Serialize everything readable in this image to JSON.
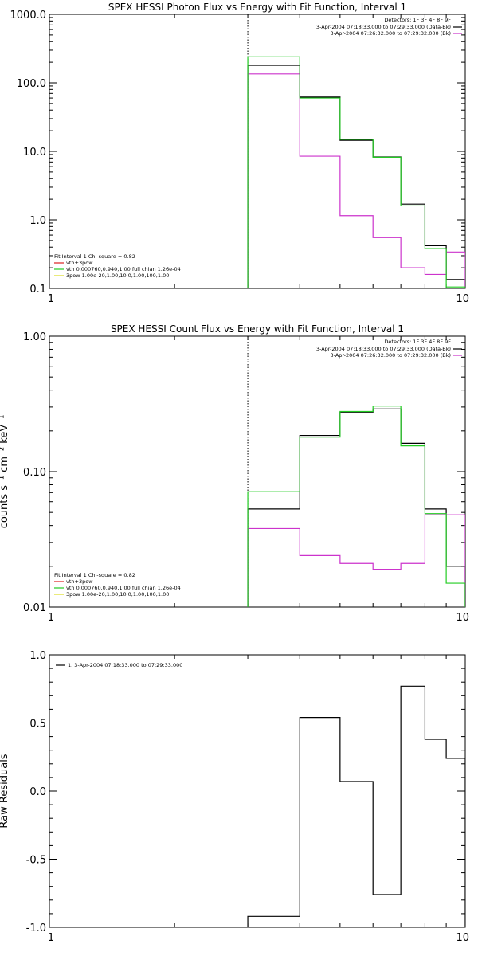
{
  "chart_data": [
    {
      "type": "line",
      "title": "SPEX HESSI Photon Flux vs Energy with Fit Function, Interval 1",
      "ylabel": "",
      "x_scale": "log",
      "y_scale": "log",
      "xlim": [
        1,
        10
      ],
      "ylim": [
        0.1,
        1000
      ],
      "x_ticks": [
        {
          "value": 1,
          "label": "1"
        },
        {
          "value": 10,
          "label": "10"
        }
      ],
      "y_ticks": [
        {
          "value": 0.1,
          "label": "0.1"
        },
        {
          "value": 1,
          "label": "1.0"
        },
        {
          "value": 10,
          "label": "10.0"
        },
        {
          "value": 100,
          "label": "100.0"
        },
        {
          "value": 1000,
          "label": "1000.0"
        }
      ],
      "vline_x": 3.0,
      "legend_top": {
        "detectors": "Detectors: 1F 3F 4F 8F 9F",
        "entries": [
          {
            "label": "3-Apr-2004 07:18:33.000 to 07:29:33.000 (Data-Bk)",
            "color": "#000000"
          },
          {
            "label": "3-Apr-2004 07:26:32.000 to 07:29:32.000 (Bk)",
            "color": "#cc33cc"
          }
        ]
      },
      "legend_bottom": {
        "header": "Fit Interval  1    Chi-square = 0.82",
        "entries": [
          {
            "label": "vth+3pow",
            "color": "#dd2222"
          },
          {
            "label": "vth 0.000760,0.940,1.00  full chian 1.26e-04",
            "color": "#22cc22"
          },
          {
            "label": "3pow 1.00e-20,1.00,10.0,1.00,100,1.00",
            "color": "#dddd22"
          }
        ]
      },
      "edges": [
        3.0,
        3.5,
        4.0,
        4.5,
        5.0,
        5.5,
        6.0,
        6.5,
        7.0,
        7.5,
        8.0,
        9.0,
        10.0
      ],
      "series": [
        {
          "color": "#000000",
          "values": [
            180,
            180,
            62,
            62,
            14.5,
            14.5,
            8.3,
            8.3,
            1.7,
            1.7,
            0.42,
            0.135
          ]
        },
        {
          "color": "#cc33cc",
          "values": [
            135,
            135,
            8.5,
            8.5,
            1.15,
            1.15,
            0.55,
            0.55,
            0.2,
            0.2,
            0.16,
            0.34
          ]
        },
        {
          "color": "#22cc22",
          "values": [
            240,
            240,
            60,
            60,
            15,
            15,
            8.2,
            8.2,
            1.6,
            1.6,
            0.38,
            0.105
          ]
        }
      ]
    },
    {
      "type": "line",
      "title": "SPEX HESSI Count Flux vs Energy with Fit Function, Interval 1",
      "ylabel": "counts s⁻¹ cm⁻² keV⁻¹",
      "x_scale": "log",
      "y_scale": "log",
      "xlim": [
        1,
        10
      ],
      "ylim": [
        0.01,
        1
      ],
      "x_ticks": [
        {
          "value": 1,
          "label": "1"
        },
        {
          "value": 10,
          "label": "10"
        }
      ],
      "y_ticks": [
        {
          "value": 0.01,
          "label": "0.01"
        },
        {
          "value": 0.1,
          "label": "0.10"
        },
        {
          "value": 1,
          "label": "1.00"
        }
      ],
      "vline_x": 3.0,
      "legend_top": {
        "detectors": "Detectors: 1F 3F 4F 8F 9F",
        "entries": [
          {
            "label": "3-Apr-2004 07:18:33.000 to 07:29:33.000 (Data-Bk)",
            "color": "#000000"
          },
          {
            "label": "3-Apr-2004 07:26:32.000 to 07:29:32.000 (Bk)",
            "color": "#cc33cc"
          }
        ]
      },
      "legend_bottom": {
        "header": "Fit Interval  1    Chi-square = 0.82",
        "entries": [
          {
            "label": "vth+3pow",
            "color": "#dd2222"
          },
          {
            "label": "vth 0.000760,0.940,1.00  full chian 1.26e-04",
            "color": "#22cc22"
          },
          {
            "label": "3pow 1.00e-20,1.00,10.0,1.00,100,1.00",
            "color": "#dddd22"
          }
        ]
      },
      "edges": [
        3.0,
        4.0,
        5.0,
        6.0,
        7.0,
        8.0,
        9.0,
        10.0
      ],
      "series": [
        {
          "color": "#000000",
          "values": [
            0.053,
            0.185,
            0.275,
            0.29,
            0.162,
            0.053,
            0.02
          ]
        },
        {
          "color": "#cc33cc",
          "values": [
            0.038,
            0.024,
            0.021,
            0.019,
            0.021,
            0.048,
            0.048
          ]
        },
        {
          "color": "#22cc22",
          "values": [
            0.071,
            0.18,
            0.278,
            0.305,
            0.155,
            0.049,
            0.015
          ]
        }
      ]
    },
    {
      "type": "line",
      "title": "",
      "ylabel": "Raw Residuals",
      "x_scale": "log",
      "y_scale": "linear",
      "xlim": [
        1,
        10
      ],
      "ylim": [
        -1.0,
        1.0
      ],
      "x_ticks": [
        {
          "value": 1,
          "label": "1"
        },
        {
          "value": 10,
          "label": "10"
        }
      ],
      "y_ticks": [
        {
          "value": -1.0,
          "label": "-1.0"
        },
        {
          "value": -0.5,
          "label": "-0.5"
        },
        {
          "value": 0.0,
          "label": "0.0"
        },
        {
          "value": 0.5,
          "label": "0.5"
        },
        {
          "value": 1.0,
          "label": "1.0"
        }
      ],
      "legend_top_left": {
        "entries": [
          {
            "label": "1.  3-Apr-2004 07:18:33.000 to 07:29:33.000",
            "color": "#000000"
          }
        ]
      },
      "edges": [
        3.0,
        4.0,
        5.0,
        6.0,
        7.0,
        8.0,
        9.0,
        10.0
      ],
      "series": [
        {
          "color": "#000000",
          "values": [
            -0.92,
            0.54,
            0.07,
            -0.76,
            0.77,
            0.38,
            0.24
          ]
        }
      ]
    }
  ]
}
